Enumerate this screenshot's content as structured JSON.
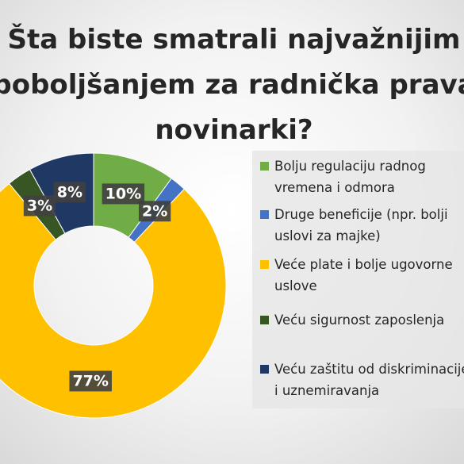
{
  "chart_data": {
    "type": "donut",
    "title": "Šta biste smatrali najvažnijim poboljšanjem za radnička prava novinarki?",
    "categories": [
      "Bolju regulaciju radnog vremena i odmora",
      "Druge beneficije (npr. bolji uslovi za majke)",
      "Veće plate i bolje ugovorne uslove",
      "Veću sigurnost zaposlenja",
      "Veću zaštitu od diskriminacije i uznemiravanja"
    ],
    "values": [
      10,
      2,
      77,
      3,
      8
    ],
    "value_labels": [
      "10%",
      "2%",
      "77%",
      "3%",
      "8%"
    ],
    "colors": [
      "#70ad47",
      "#4472c4",
      "#ffc000",
      "#375623",
      "#203864"
    ],
    "legend": "right"
  }
}
